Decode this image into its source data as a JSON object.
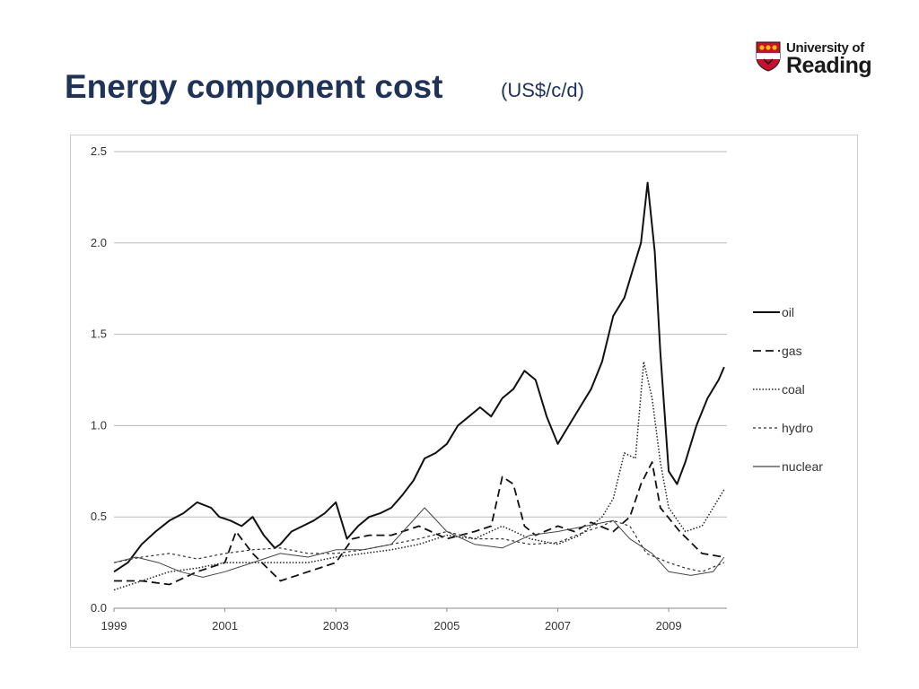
{
  "slide": {
    "title": "Energy component cost",
    "subtitle": "(US$/c/d)"
  },
  "logo": {
    "line1": "University of",
    "line2": "Reading",
    "shield_colors": {
      "red": "#c8102e",
      "gold": "#f2c200",
      "dark": "#1a1a1a"
    }
  },
  "chart_data": {
    "type": "line",
    "title": "",
    "xlabel": "",
    "ylabel": "",
    "xlim": [
      1999,
      2010.05
    ],
    "ylim": [
      0,
      2.5
    ],
    "x_ticks": [
      "1999",
      "2001",
      "2003",
      "2005",
      "2007",
      "2009"
    ],
    "y_ticks": [
      "0.0",
      "0.5",
      "1.0",
      "1.5",
      "2.0",
      "2.5"
    ],
    "grid": true,
    "legend_position": "right",
    "series": [
      {
        "name": "oil",
        "style": "solid",
        "width": 2.0,
        "color": "#111111",
        "x": [
          1999.0,
          1999.25,
          1999.5,
          1999.75,
          2000.0,
          2000.25,
          2000.5,
          2000.75,
          2000.9,
          2001.1,
          2001.3,
          2001.5,
          2001.7,
          2001.9,
          2002.0,
          2002.2,
          2002.4,
          2002.6,
          2002.8,
          2003.0,
          2003.2,
          2003.4,
          2003.6,
          2003.8,
          2004.0,
          2004.2,
          2004.4,
          2004.6,
          2004.8,
          2005.0,
          2005.2,
          2005.4,
          2005.6,
          2005.8,
          2006.0,
          2006.2,
          2006.4,
          2006.6,
          2006.8,
          2007.0,
          2007.2,
          2007.4,
          2007.6,
          2007.8,
          2008.0,
          2008.2,
          2008.35,
          2008.5,
          2008.62,
          2008.75,
          2008.85,
          2009.0,
          2009.15,
          2009.3,
          2009.5,
          2009.7,
          2009.9,
          2010.0
        ],
        "y": [
          0.2,
          0.25,
          0.35,
          0.42,
          0.48,
          0.52,
          0.58,
          0.55,
          0.5,
          0.48,
          0.45,
          0.5,
          0.4,
          0.33,
          0.35,
          0.42,
          0.45,
          0.48,
          0.52,
          0.58,
          0.38,
          0.45,
          0.5,
          0.52,
          0.55,
          0.62,
          0.7,
          0.82,
          0.85,
          0.9,
          1.0,
          1.05,
          1.1,
          1.05,
          1.15,
          1.2,
          1.3,
          1.25,
          1.05,
          0.9,
          1.0,
          1.1,
          1.2,
          1.35,
          1.6,
          1.7,
          1.85,
          2.0,
          2.33,
          1.95,
          1.4,
          0.75,
          0.68,
          0.8,
          1.0,
          1.15,
          1.25,
          1.32
        ]
      },
      {
        "name": "gas",
        "style": "dashed",
        "width": 1.8,
        "color": "#111111",
        "x": [
          1999.0,
          1999.5,
          2000.0,
          2000.5,
          2001.0,
          2001.2,
          2001.5,
          2002.0,
          2002.5,
          2003.0,
          2003.3,
          2003.6,
          2004.0,
          2004.5,
          2005.0,
          2005.5,
          2005.8,
          2006.0,
          2006.2,
          2006.4,
          2006.6,
          2007.0,
          2007.3,
          2007.6,
          2008.0,
          2008.3,
          2008.5,
          2008.7,
          2008.85,
          2009.2,
          2009.6,
          2010.0
        ],
        "y": [
          0.15,
          0.15,
          0.13,
          0.2,
          0.25,
          0.42,
          0.3,
          0.15,
          0.2,
          0.25,
          0.38,
          0.4,
          0.4,
          0.45,
          0.38,
          0.42,
          0.45,
          0.72,
          0.68,
          0.45,
          0.4,
          0.45,
          0.42,
          0.47,
          0.42,
          0.5,
          0.68,
          0.8,
          0.55,
          0.42,
          0.3,
          0.28
        ]
      },
      {
        "name": "coal",
        "style": "dotted",
        "width": 1.5,
        "color": "#222222",
        "x": [
          1999.0,
          1999.5,
          2000.0,
          2000.5,
          2001.0,
          2001.5,
          2002.0,
          2002.5,
          2003.0,
          2003.5,
          2004.0,
          2004.5,
          2005.0,
          2005.5,
          2006.0,
          2006.5,
          2007.0,
          2007.4,
          2007.8,
          2008.0,
          2008.2,
          2008.4,
          2008.55,
          2008.7,
          2008.85,
          2009.0,
          2009.3,
          2009.6,
          2010.0
        ],
        "y": [
          0.1,
          0.15,
          0.2,
          0.22,
          0.25,
          0.25,
          0.25,
          0.25,
          0.28,
          0.3,
          0.32,
          0.35,
          0.4,
          0.38,
          0.45,
          0.38,
          0.35,
          0.4,
          0.5,
          0.6,
          0.85,
          0.82,
          1.35,
          1.15,
          0.8,
          0.55,
          0.42,
          0.45,
          0.65
        ]
      },
      {
        "name": "hydro",
        "style": "shortdash",
        "width": 1.2,
        "color": "#333333",
        "x": [
          1999.0,
          1999.5,
          2000.0,
          2000.5,
          2001.0,
          2001.5,
          2002.0,
          2002.5,
          2003.0,
          2003.5,
          2004.0,
          2004.5,
          2005.0,
          2005.5,
          2006.0,
          2006.5,
          2007.0,
          2007.5,
          2007.8,
          2008.0,
          2008.3,
          2008.6,
          2009.0,
          2009.3,
          2009.6,
          2010.0
        ],
        "y": [
          0.25,
          0.28,
          0.3,
          0.27,
          0.3,
          0.32,
          0.33,
          0.3,
          0.3,
          0.32,
          0.35,
          0.38,
          0.42,
          0.38,
          0.38,
          0.35,
          0.36,
          0.42,
          0.45,
          0.48,
          0.45,
          0.3,
          0.25,
          0.22,
          0.2,
          0.25
        ]
      },
      {
        "name": "nuclear",
        "style": "solid",
        "width": 1.0,
        "color": "#444444",
        "x": [
          1999.0,
          1999.4,
          1999.8,
          2000.2,
          2000.6,
          2001.0,
          2001.5,
          2002.0,
          2002.5,
          2003.0,
          2003.5,
          2004.0,
          2004.3,
          2004.6,
          2005.0,
          2005.5,
          2006.0,
          2006.5,
          2007.0,
          2007.5,
          2008.0,
          2008.3,
          2008.7,
          2009.0,
          2009.4,
          2009.8,
          2010.0
        ],
        "y": [
          0.25,
          0.28,
          0.25,
          0.2,
          0.17,
          0.2,
          0.25,
          0.3,
          0.28,
          0.32,
          0.32,
          0.35,
          0.45,
          0.55,
          0.42,
          0.35,
          0.33,
          0.4,
          0.42,
          0.45,
          0.48,
          0.38,
          0.3,
          0.2,
          0.18,
          0.2,
          0.28
        ]
      }
    ]
  }
}
